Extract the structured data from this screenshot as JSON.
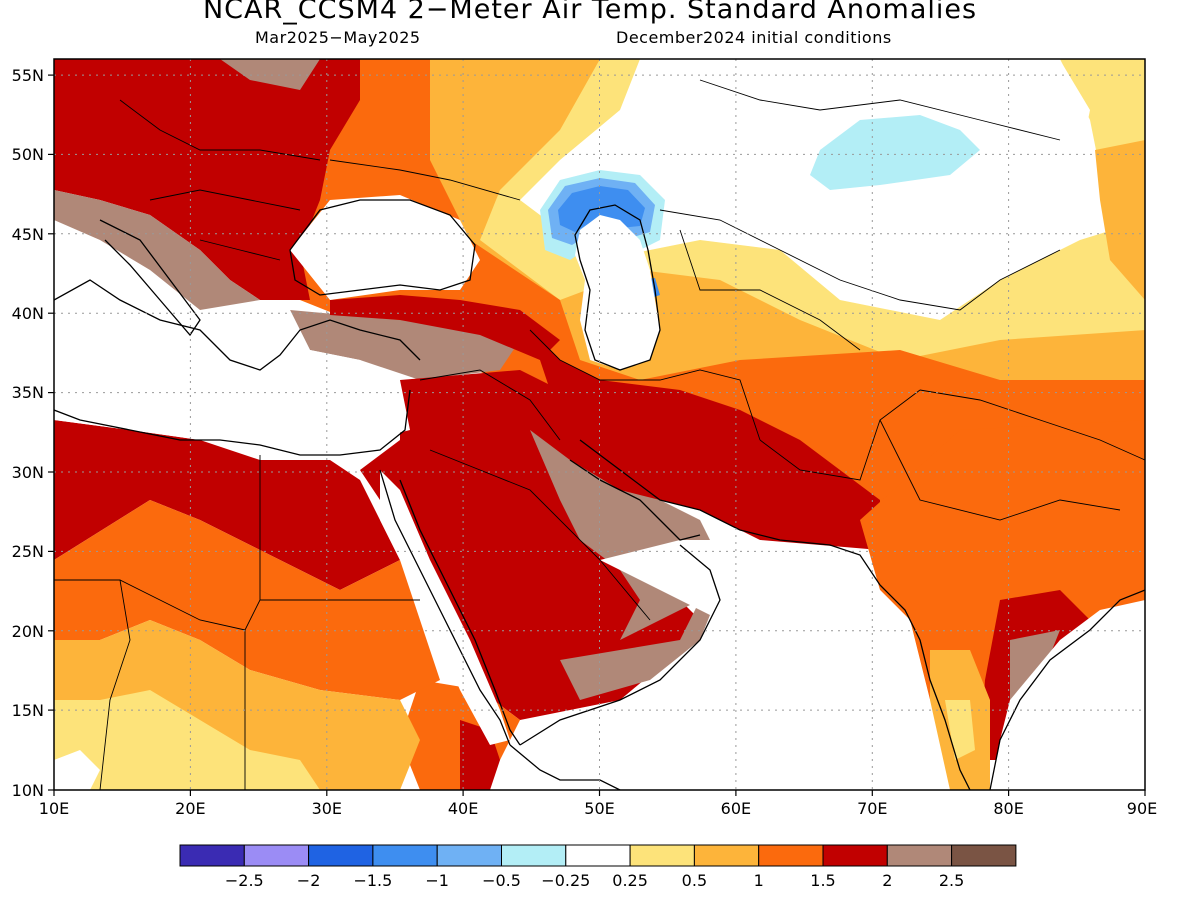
{
  "header": {
    "title": "NCAR_CCSM4 2−Meter Air Temp. Standard Anomalies",
    "period": "Mar2025−May2025",
    "init": "December2024 initial conditions"
  },
  "axes": {
    "lon_labels": [
      "10E",
      "20E",
      "30E",
      "40E",
      "50E",
      "60E",
      "70E",
      "80E",
      "90E"
    ],
    "lat_labels": [
      "55N",
      "50N",
      "45N",
      "40N",
      "35N",
      "30N",
      "25N",
      "20N",
      "15N",
      "10N"
    ]
  },
  "colorbar": {
    "colors": [
      "#3a2bb3",
      "#9b8cf5",
      "#1f63e3",
      "#3e8ef0",
      "#6fb1f4",
      "#b3eef6",
      "#ffffff",
      "#fde37a",
      "#fdb43a",
      "#fb6a0d",
      "#c10000",
      "#b08878",
      "#7a5444"
    ],
    "labels": [
      "−2.5",
      "−2",
      "−1.5",
      "−1",
      "−0.5",
      "−0.25",
      "0.25",
      "0.5",
      "1",
      "1.5",
      "2",
      "2.5"
    ]
  },
  "regions": [
    {
      "name": "europe-warm",
      "color": "#c10000"
    },
    {
      "name": "eastern-europe-mild",
      "color": "#fb6a0d"
    },
    {
      "name": "arabia-warm",
      "color": "#c10000"
    },
    {
      "name": "iran-warm",
      "color": "#c10000"
    },
    {
      "name": "india-mild",
      "color": "#fb6a0d"
    },
    {
      "name": "north-africa-mild",
      "color": "#fb6a0d"
    },
    {
      "name": "caspian-cool",
      "color": "#3e8ef0"
    },
    {
      "name": "kazakhstan-cool",
      "color": "#b3eef6"
    }
  ]
}
